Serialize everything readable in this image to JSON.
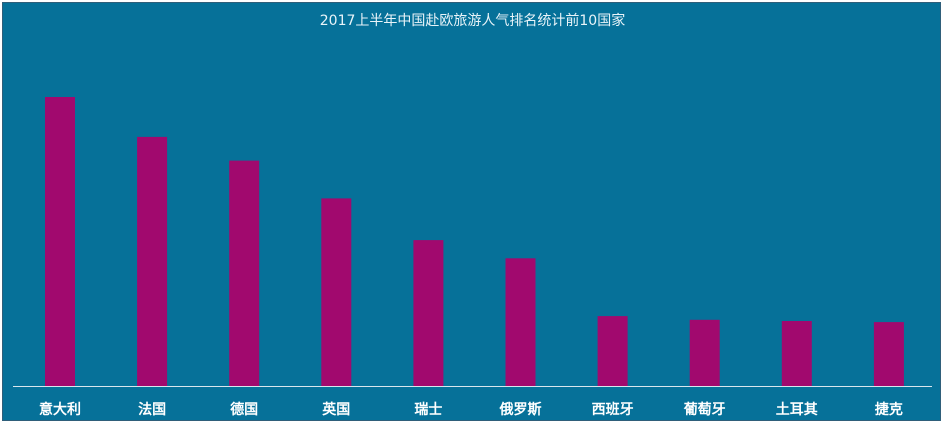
{
  "chart_data": {
    "type": "bar",
    "title": "2017上半年中国赴欧旅游人气排名统计前10国家",
    "xlabel": "",
    "ylabel": "",
    "categories": [
      "意大利",
      "法国",
      "德国",
      "英国",
      "瑞士",
      "俄罗斯",
      "西班牙",
      "葡萄牙",
      "土耳其",
      "捷克"
    ],
    "values": [
      100,
      86.2,
      78,
      64.9,
      50.5,
      44.2,
      24.2,
      22.9,
      22.5,
      22.1
    ],
    "ylim": [
      0,
      100
    ],
    "grid": false,
    "legend": "none",
    "bar_color": "#a1096e",
    "background_color": "#067199",
    "axis_color": "#d8e6ee"
  }
}
